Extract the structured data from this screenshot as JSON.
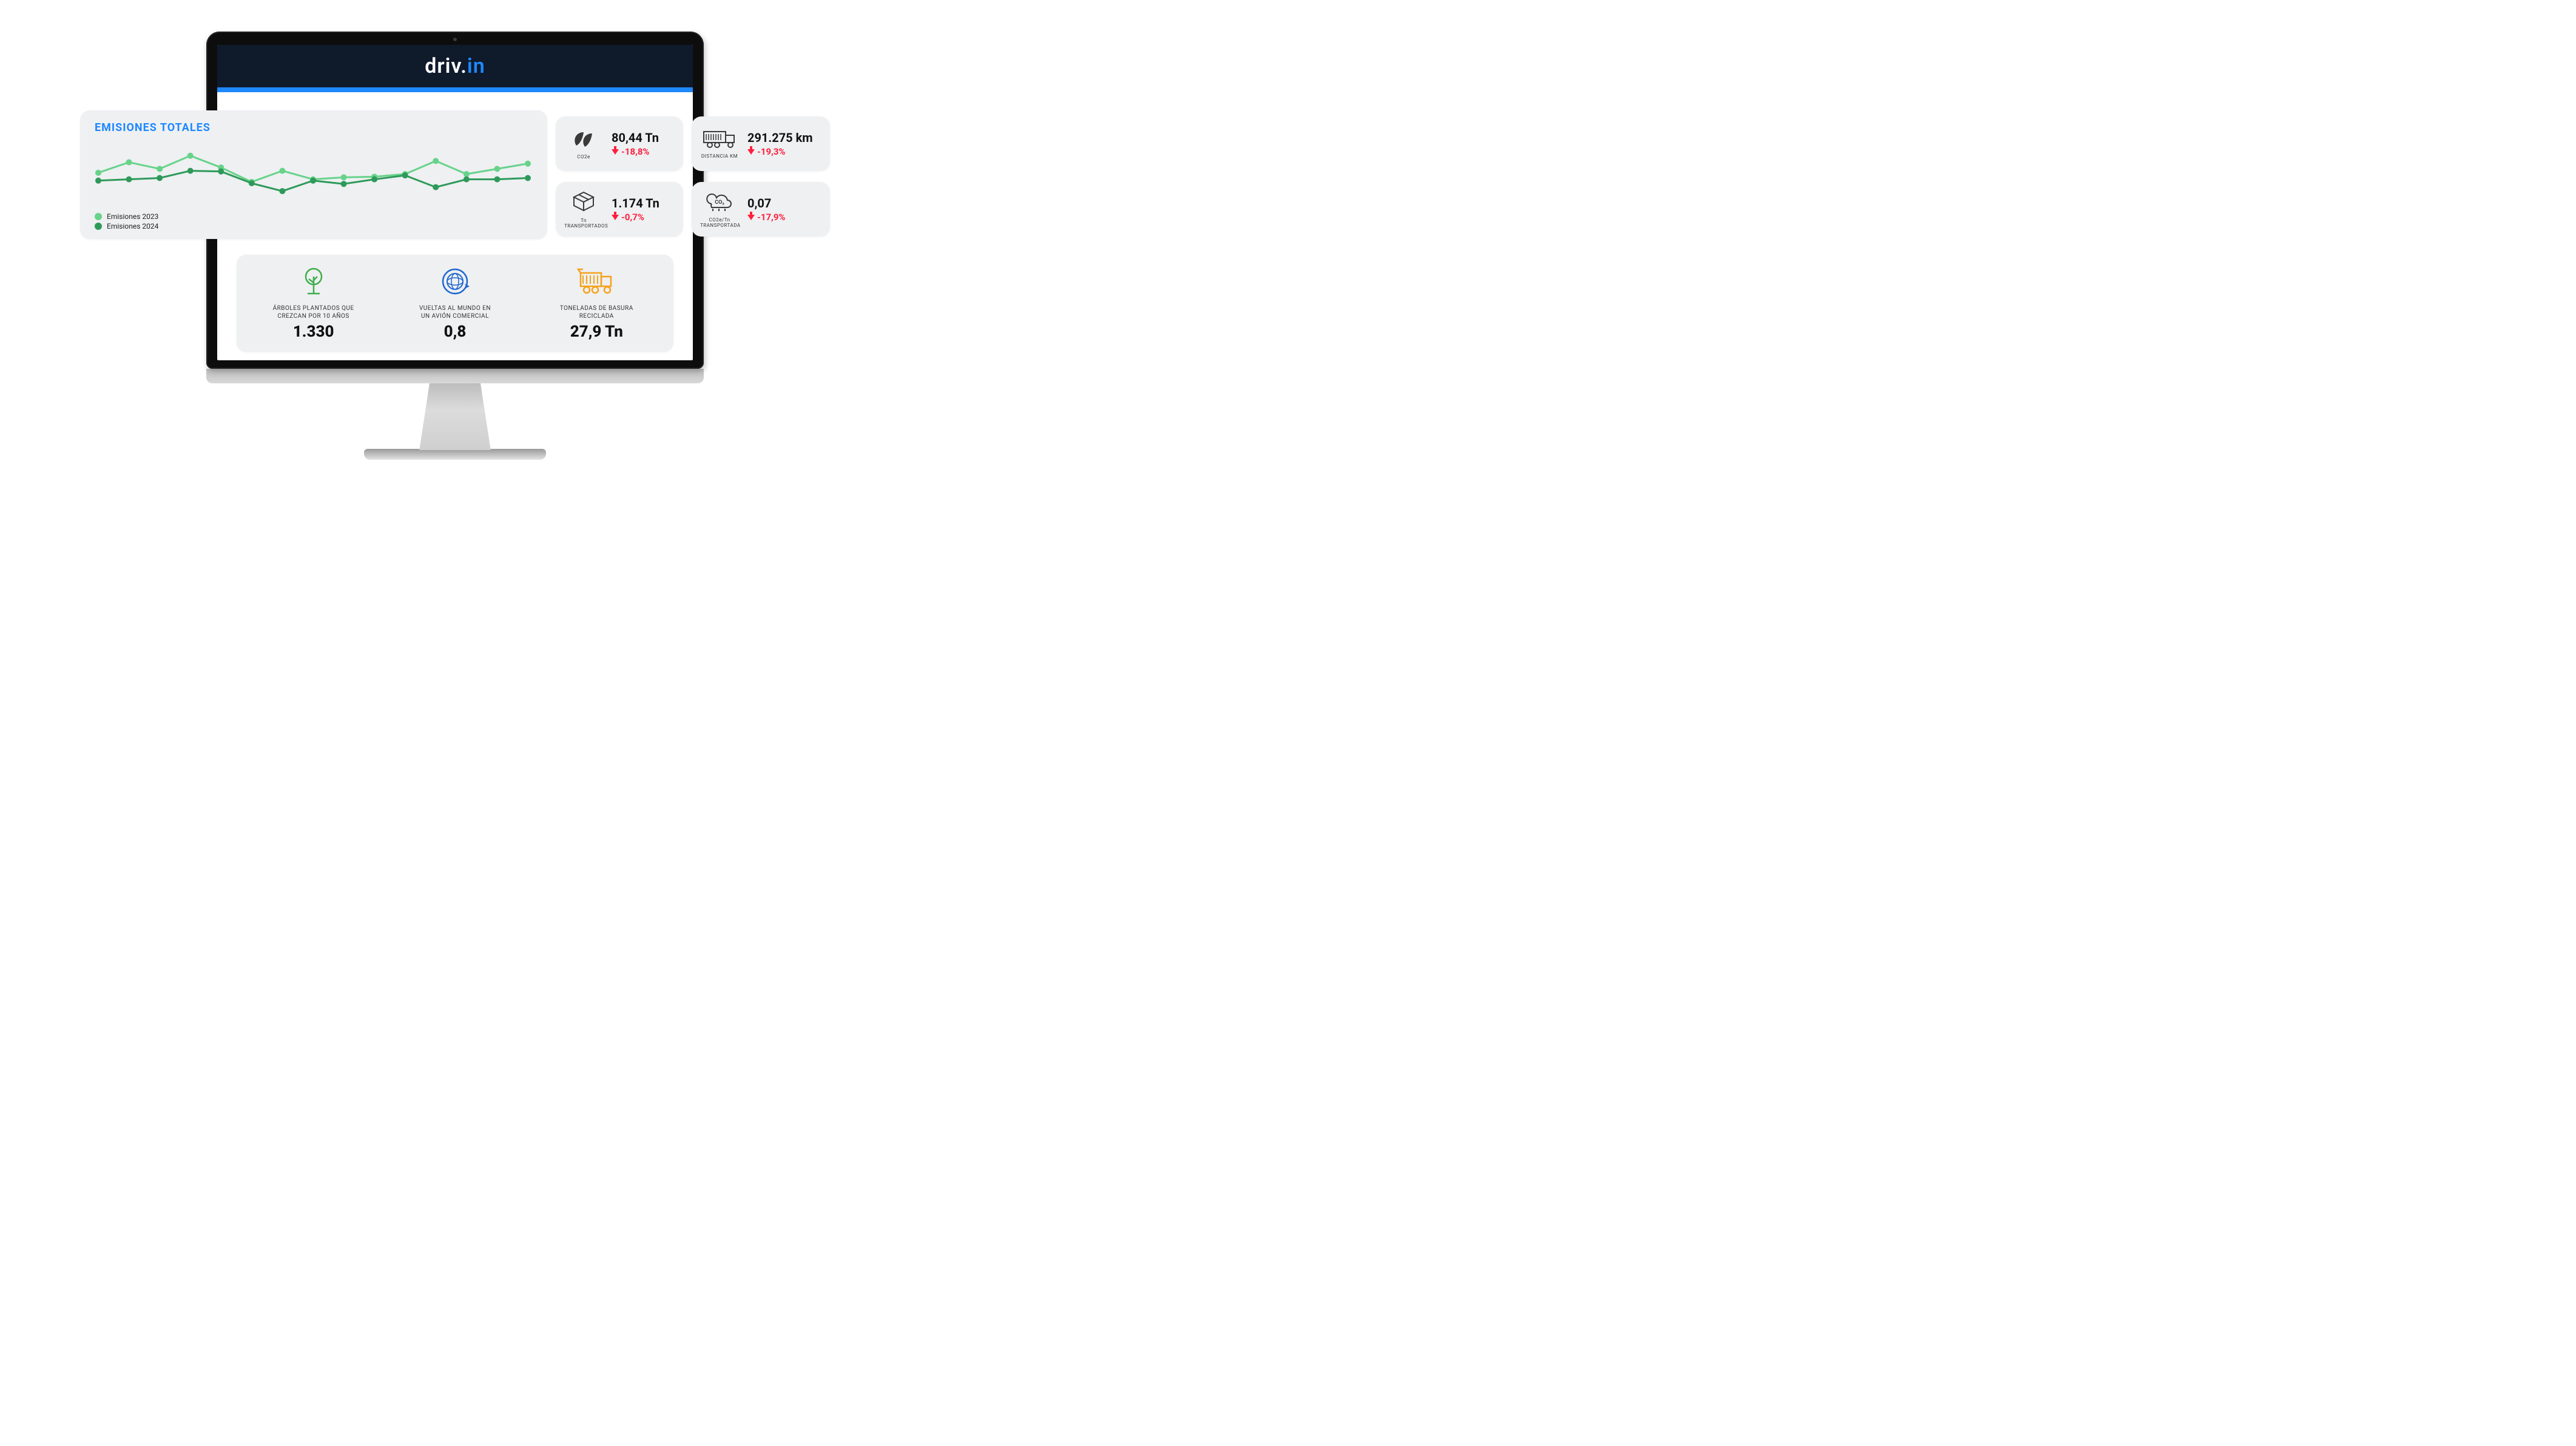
{
  "brand": {
    "prefix": "driv.",
    "suffix": "in",
    "prefix_color": "#ffffff",
    "suffix_color": "#1e88ff"
  },
  "colors": {
    "card_bg": "#eef0f2",
    "topbar_bg": "#0f1a2b",
    "accent_blue": "#1e88ff",
    "text_dark": "#111111",
    "delta_red": "#ff1f3d",
    "series_2023": "#67d38a",
    "series_2024": "#2e9a5a",
    "icon_green": "#3fae49",
    "icon_blue": "#1e66d0",
    "icon_orange": "#f6a21b",
    "icon_gray": "#3a3a3a"
  },
  "chart": {
    "title": "EMISIONES TOTALES",
    "type": "line",
    "x_points": 15,
    "ylim": [
      0,
      100
    ],
    "line_width": 3,
    "marker_radius": 5,
    "series": [
      {
        "name": "Emisiones 2023",
        "color": "#67d38a",
        "values": [
          52,
          68,
          58,
          78,
          60,
          38,
          55,
          42,
          45,
          46,
          50,
          70,
          50,
          58,
          66
        ]
      },
      {
        "name": "Emisiones 2024",
        "color": "#2e9a5a",
        "values": [
          40,
          42,
          44,
          55,
          54,
          36,
          24,
          40,
          35,
          42,
          48,
          30,
          42,
          42,
          44
        ]
      }
    ],
    "legend": [
      {
        "label": "Emisiones 2023",
        "color": "#67d38a"
      },
      {
        "label": "Emisiones 2024",
        "color": "#2e9a5a"
      }
    ]
  },
  "kpis": [
    {
      "id": "co2e",
      "icon": "leaf",
      "icon_color": "#3a3a3a",
      "sublabel": "CO2e",
      "value": "80,44 Tn",
      "delta": "-18,8%"
    },
    {
      "id": "distance",
      "icon": "truck",
      "icon_color": "#3a3a3a",
      "sublabel": "DISTANCIA KM",
      "value": "291.275 km",
      "delta": "-19,3%"
    },
    {
      "id": "transported",
      "icon": "box",
      "icon_color": "#3a3a3a",
      "sublabel": "Tn TRANSPORTADOS",
      "value": "1.174 Tn",
      "delta": "-0,7%"
    },
    {
      "id": "co2_per_tn",
      "icon": "cloud-co2",
      "icon_color": "#3a3a3a",
      "sublabel": "CO2e/Tn TRANSPORTADA",
      "value": "0,07",
      "delta": "-17,9%"
    }
  ],
  "bottom_stats": [
    {
      "id": "trees",
      "icon": "tree",
      "icon_color": "#3fae49",
      "label_line1": "ÁRBOLES PLANTADOS QUE",
      "label_line2": "CREZCAN POR 10 AÑOS",
      "value": "1.330"
    },
    {
      "id": "world_trips",
      "icon": "globe-plane",
      "icon_color": "#1e66d0",
      "label_line1": "VUELTAS AL MUNDO EN",
      "label_line2": "UN AVIÓN COMERCIAL",
      "value": "0,8"
    },
    {
      "id": "recycled",
      "icon": "garbage-truck",
      "icon_color": "#f6a21b",
      "label_line1": "TONELADAS DE BASURA",
      "label_line2": "RECICLADA",
      "value": "27,9 Tn"
    }
  ]
}
